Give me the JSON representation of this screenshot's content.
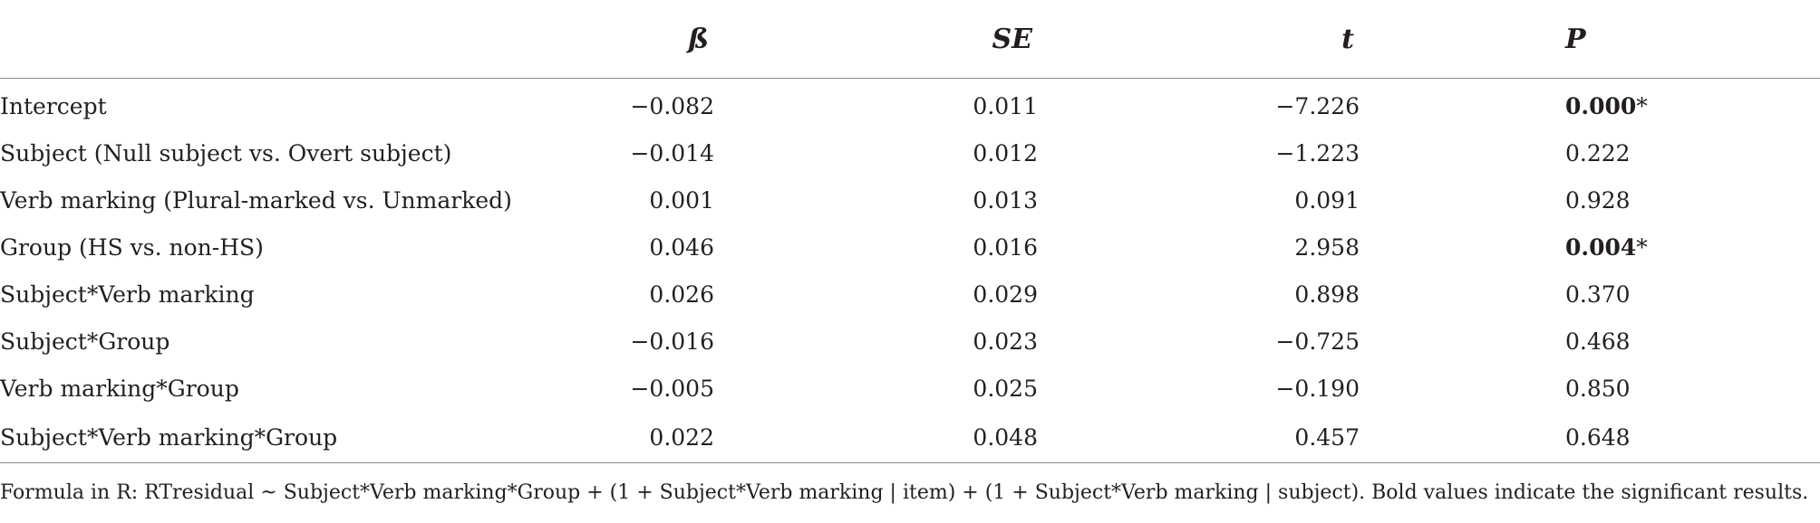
{
  "table": {
    "headers": {
      "label": "",
      "beta": "ß",
      "se": "SE",
      "t": "t",
      "p": "P"
    },
    "rows": [
      {
        "label": "Intercept",
        "beta": "−0.082",
        "se": "0.011",
        "t": "−7.226",
        "p": "0.000",
        "p_suffix": "*",
        "significant": true
      },
      {
        "label": "Subject (Null subject vs. Overt subject)",
        "beta": "−0.014",
        "se": "0.012",
        "t": "−1.223",
        "p": "0.222",
        "p_suffix": "",
        "significant": false
      },
      {
        "label": "Verb marking (Plural-marked vs. Unmarked)",
        "beta": "0.001",
        "se": "0.013",
        "t": "0.091",
        "p": "0.928",
        "p_suffix": "",
        "significant": false
      },
      {
        "label": "Group (HS vs. non-HS)",
        "beta": "0.046",
        "se": "0.016",
        "t": "2.958",
        "p": "0.004",
        "p_suffix": "*",
        "significant": true
      },
      {
        "label": "Subject*Verb marking",
        "beta": "0.026",
        "se": "0.029",
        "t": "0.898",
        "p": "0.370",
        "p_suffix": "",
        "significant": false
      },
      {
        "label": "Subject*Group",
        "beta": "−0.016",
        "se": "0.023",
        "t": "−0.725",
        "p": "0.468",
        "p_suffix": "",
        "significant": false
      },
      {
        "label": "Verb marking*Group",
        "beta": "−0.005",
        "se": "0.025",
        "t": "−0.190",
        "p": "0.850",
        "p_suffix": "",
        "significant": false
      },
      {
        "label": "Subject*Verb marking*Group",
        "beta": "0.022",
        "se": "0.048",
        "t": "0.457",
        "p": "0.648",
        "p_suffix": "",
        "significant": false
      }
    ]
  },
  "footnote": "Formula in R: RTresidual ~ Subject*Verb marking*Group + (1 + Subject*Verb marking | item) + (1 + Subject*Verb marking | subject). Bold values indicate the significant results."
}
